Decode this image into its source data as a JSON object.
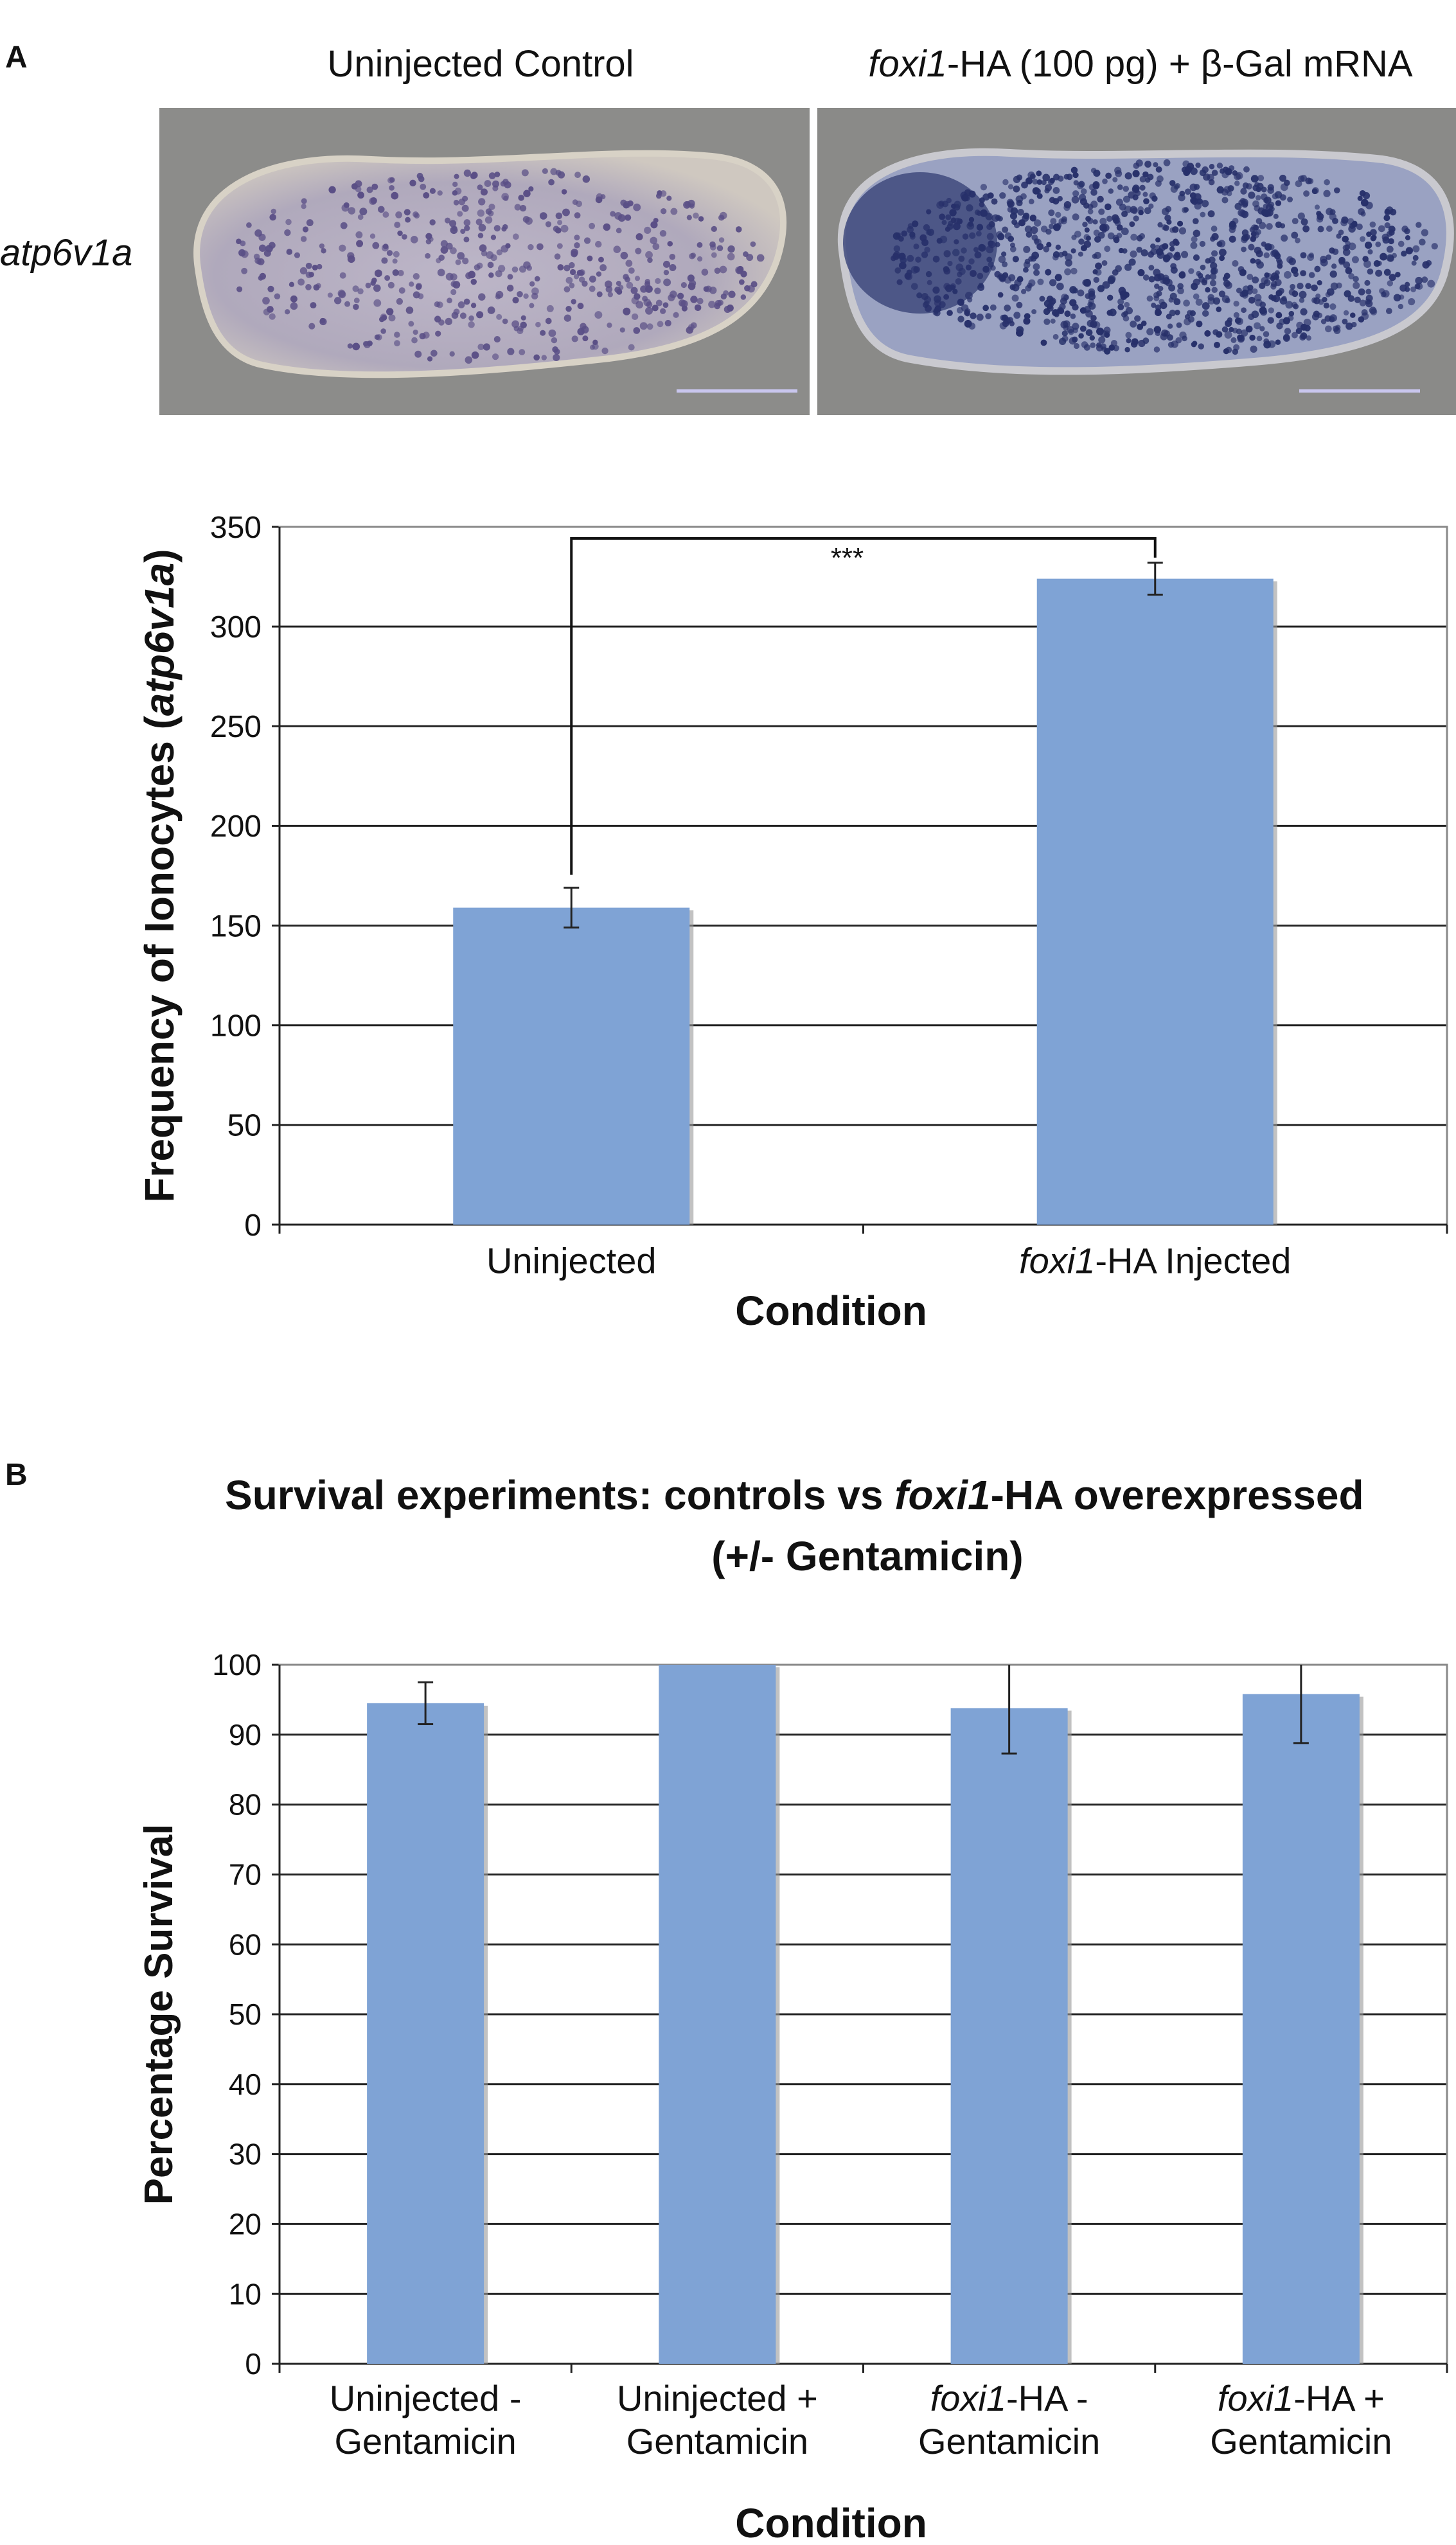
{
  "panel_a": {
    "letter": "A",
    "images": {
      "left_title": "Uninjected Control",
      "right_title_gene": "foxi1",
      "right_title_rest": "-HA (100 pg) + β-Gal mRNA",
      "row_label": "atp6v1a"
    }
  },
  "panel_b": {
    "letter": "B",
    "title_line1_prefix": "Survival experiments: controls vs ",
    "title_line1_gene": "foxi1",
    "title_line1_suffix": "-HA overexpressed",
    "title_line2": "(+/- Gentamicin)"
  },
  "chart_data": [
    {
      "type": "bar",
      "categories": [
        "Uninjected",
        "foxi1-HA Injected"
      ],
      "values": [
        159,
        324
      ],
      "errors": [
        10,
        8
      ],
      "xlabel": "Condition",
      "ylabel": "Frequency of Ionocytes (atp6v1a)",
      "ylim": [
        0,
        350
      ],
      "yticks": [
        0,
        50,
        100,
        150,
        200,
        250,
        300,
        350
      ],
      "grid": true,
      "significance": "***",
      "bar_color": "#7fa3d5"
    },
    {
      "type": "bar",
      "categories": [
        "Uninjected - Gentamicin",
        "Uninjected + Gentamicin",
        "foxi1-HA - Gentamicin",
        "foxi1-HA + Gentamicin"
      ],
      "values": [
        94.5,
        100,
        93.8,
        95.8
      ],
      "errors": [
        3,
        0,
        6.5,
        7
      ],
      "xlabel": "Condition",
      "ylabel": "Percentage Survival",
      "ylim": [
        0,
        100
      ],
      "yticks": [
        0,
        10,
        20,
        30,
        40,
        50,
        60,
        70,
        80,
        90,
        100
      ],
      "grid": true,
      "bar_color": "#7fa3d5"
    }
  ]
}
